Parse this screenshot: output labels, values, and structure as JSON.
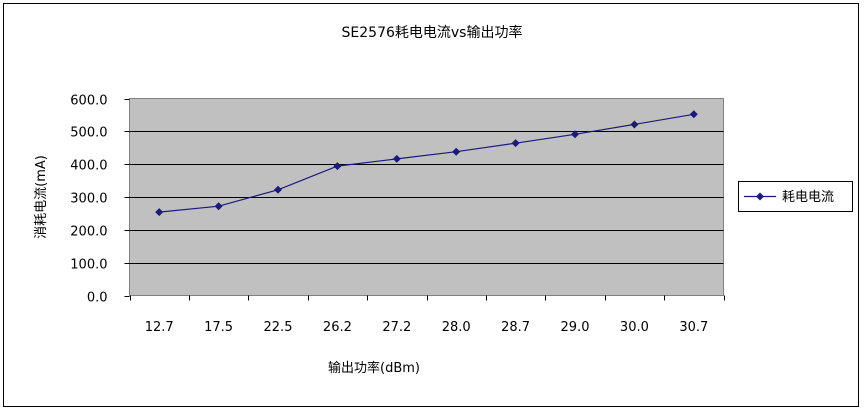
{
  "chart_data": {
    "type": "line",
    "title": "SE2576耗电电流vs输出功率",
    "xlabel": "输出功率(dBm)",
    "ylabel": "消耗电流(mA)",
    "categories": [
      "12.7",
      "17.5",
      "22.5",
      "26.2",
      "27.2",
      "28.0",
      "28.7",
      "29.0",
      "30.0",
      "30.7"
    ],
    "series": [
      {
        "name": "耗电电流",
        "values": [
          254,
          272,
          322,
          394,
          416,
          438,
          464,
          491,
          521,
          552
        ],
        "color": "#1a1a80"
      }
    ],
    "ylim": [
      0,
      600
    ],
    "yticks": [
      "0.0",
      "100.0",
      "200.0",
      "300.0",
      "400.0",
      "500.0",
      "600.0"
    ],
    "plot_background": "#c0c0c0",
    "grid": true,
    "legend_position": "right",
    "marker": "diamond-icon"
  }
}
